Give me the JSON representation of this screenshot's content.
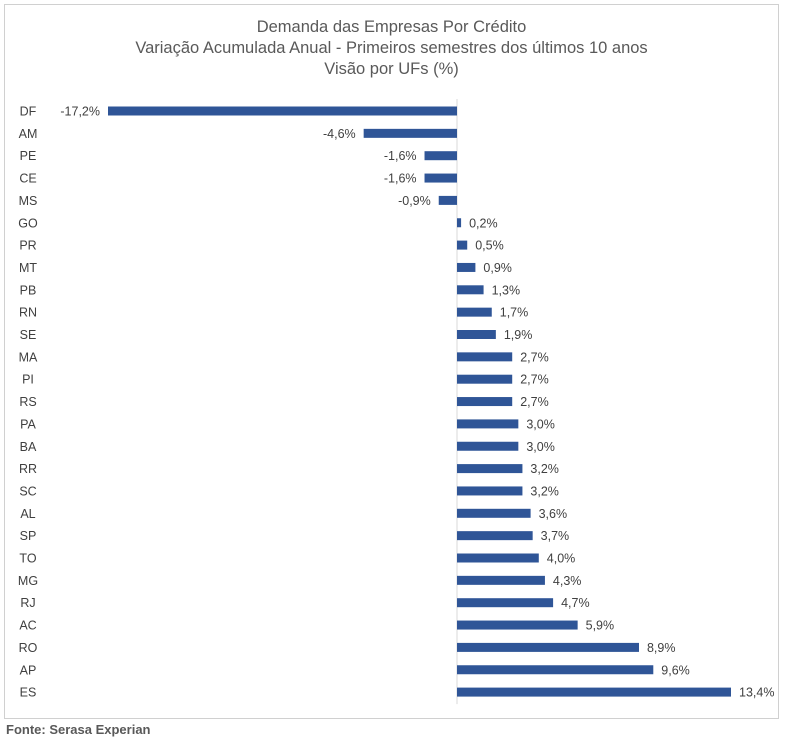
{
  "chart_data": {
    "type": "bar",
    "orientation": "horizontal",
    "title": "Demanda das Empresas Por Crédito",
    "subtitle": "Variação Acumulada Anual - Primeiros semestres dos últimos 10 anos",
    "subtitle2": "Visão por UFs (%)",
    "categories": [
      "DF",
      "AM",
      "PE",
      "CE",
      "MS",
      "GO",
      "PR",
      "MT",
      "PB",
      "RN",
      "SE",
      "MA",
      "PI",
      "RS",
      "PA",
      "BA",
      "RR",
      "SC",
      "AL",
      "SP",
      "TO",
      "MG",
      "RJ",
      "AC",
      "RO",
      "AP",
      "ES"
    ],
    "values": [
      -17.2,
      -4.6,
      -1.6,
      -1.6,
      -0.9,
      0.2,
      0.5,
      0.9,
      1.3,
      1.7,
      1.9,
      2.7,
      2.7,
      2.7,
      3.0,
      3.0,
      3.2,
      3.2,
      3.6,
      3.7,
      4.0,
      4.3,
      4.7,
      5.9,
      8.9,
      9.6,
      13.4
    ],
    "labels": [
      "-17,2%",
      "-4,6%",
      "-1,6%",
      "-1,6%",
      "-0,9%",
      "0,2%",
      "0,5%",
      "0,9%",
      "1,3%",
      "1,7%",
      "1,9%",
      "2,7%",
      "2,7%",
      "2,7%",
      "3,0%",
      "3,0%",
      "3,2%",
      "3,2%",
      "3,6%",
      "3,7%",
      "4,0%",
      "4,3%",
      "4,7%",
      "5,9%",
      "8,9%",
      "9,6%",
      "13,4%"
    ],
    "xlim": [
      -17.2,
      13.4
    ],
    "bar_color": "#2F5597",
    "xlabel": "",
    "ylabel": "",
    "grid": false,
    "legend": "none"
  },
  "source": "Fonte: Serasa Experian"
}
